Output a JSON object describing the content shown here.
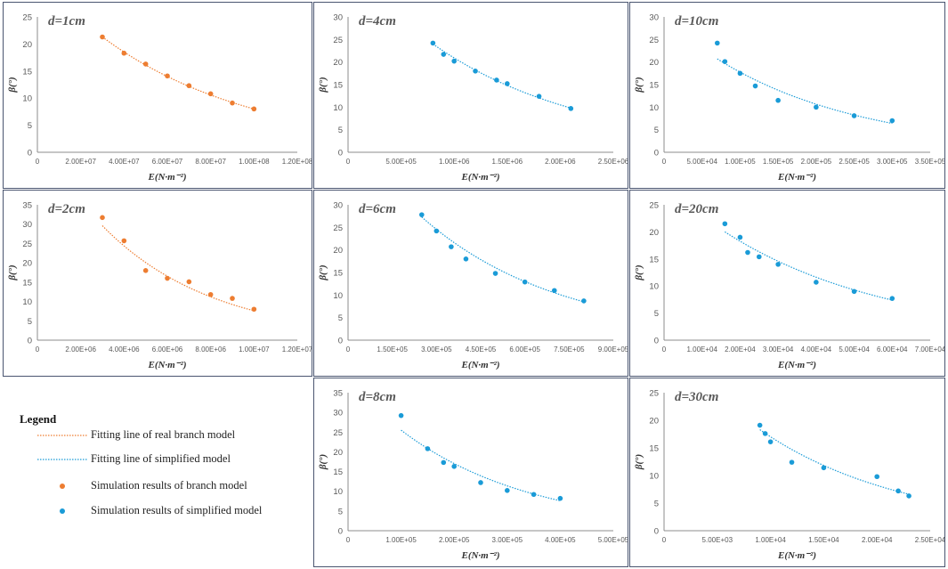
{
  "colors": {
    "branch": "#ED7D31",
    "simplified": "#1A9BD7",
    "axis": "#8c8c8c",
    "label": "#595959",
    "frame": "#4a5570"
  },
  "legend": {
    "title": "Legend",
    "items": [
      {
        "label": "Fitting line of real branch model",
        "kind": "line",
        "color": "#ED7D31"
      },
      {
        "label": "Fitting line of simplified model",
        "kind": "line",
        "color": "#1A9BD7"
      },
      {
        "label": "Simulation results of branch model",
        "kind": "marker",
        "color": "#ED7D31"
      },
      {
        "label": "Simulation results of simplified model",
        "kind": "marker",
        "color": "#1A9BD7"
      }
    ]
  },
  "chart_data": [
    {
      "id": "d1",
      "type": "scatter",
      "title": "d=1cm",
      "model": "branch",
      "xlabel": "E(N·m⁻²)",
      "ylabel": "β(°)",
      "xlim": [
        0,
        120000000
      ],
      "ylim": [
        0,
        25
      ],
      "xticks": [
        0,
        20000000,
        40000000,
        60000000,
        80000000,
        100000000,
        120000000
      ],
      "xtick_labels": [
        "0",
        "2.00E+07",
        "4.00E+07",
        "6.00E+07",
        "8.00E+07",
        "1.00E+08",
        "1.20E+08"
      ],
      "yticks": [
        0,
        5,
        10,
        15,
        20,
        25
      ],
      "x": [
        30000000,
        40000000,
        50000000,
        60000000,
        70000000,
        80000000,
        90000000,
        100000000
      ],
      "y": [
        21.3,
        18.3,
        16.3,
        14.1,
        12.3,
        10.8,
        9.1,
        8.0
      ],
      "fit": {
        "x": [
          30000000,
          100000000
        ],
        "y": [
          21.3,
          8.0
        ]
      }
    },
    {
      "id": "d4",
      "type": "scatter",
      "title": "d=4cm",
      "model": "simplified",
      "xlabel": "E(N·m⁻²)",
      "ylabel": "β(°)",
      "xlim": [
        0,
        2500000
      ],
      "ylim": [
        0,
        30
      ],
      "xticks": [
        0,
        500000,
        1000000,
        1500000,
        2000000,
        2500000
      ],
      "xtick_labels": [
        "0",
        "5.00E+05",
        "1.00E+06",
        "1.50E+06",
        "2.00E+06",
        "2.50E+06"
      ],
      "yticks": [
        0,
        5,
        10,
        15,
        20,
        25,
        30
      ],
      "x": [
        800000,
        900000,
        1000000,
        1200000,
        1400000,
        1500000,
        1800000,
        2100000
      ],
      "y": [
        24.2,
        21.7,
        20.2,
        18.0,
        16.0,
        15.2,
        12.4,
        9.7
      ],
      "fit": {
        "x": [
          800000,
          2100000
        ],
        "y": [
          24.0,
          9.8
        ]
      }
    },
    {
      "id": "d10",
      "type": "scatter",
      "title": "d=10cm",
      "model": "simplified",
      "xlabel": "E(N·m⁻²)",
      "ylabel": "β(°)",
      "xlim": [
        0,
        350000
      ],
      "ylim": [
        0,
        30
      ],
      "xticks": [
        0,
        50000,
        100000,
        150000,
        200000,
        250000,
        300000,
        350000
      ],
      "xtick_labels": [
        "0",
        "5.00E+04",
        "1.00E+05",
        "1.50E+05",
        "2.00E+05",
        "2.50E+05",
        "3.00E+05",
        "3.50E+05"
      ],
      "yticks": [
        0,
        5,
        10,
        15,
        20,
        25,
        30
      ],
      "x": [
        70000,
        80000,
        100000,
        120000,
        150000,
        200000,
        250000,
        300000
      ],
      "y": [
        24.2,
        20.1,
        17.5,
        14.7,
        11.5,
        10.0,
        8.1,
        7.0
      ],
      "fit": {
        "x": [
          70000,
          300000
        ],
        "y": [
          20.7,
          6.4
        ]
      }
    },
    {
      "id": "d2",
      "type": "scatter",
      "title": "d=2cm",
      "model": "branch",
      "xlabel": "E(N·m⁻²)",
      "ylabel": "β(°)",
      "xlim": [
        0,
        12000000
      ],
      "ylim": [
        0,
        35
      ],
      "xticks": [
        0,
        2000000,
        4000000,
        6000000,
        8000000,
        10000000,
        12000000
      ],
      "xtick_labels": [
        "0",
        "2.00E+06",
        "4.00E+06",
        "6.00E+06",
        "8.00E+06",
        "1.00E+07",
        "1.20E+07"
      ],
      "yticks": [
        0,
        5,
        10,
        15,
        20,
        25,
        30,
        35
      ],
      "x": [
        3000000,
        4000000,
        5000000,
        6000000,
        7000000,
        8000000,
        9000000,
        10000000
      ],
      "y": [
        31.7,
        25.7,
        18.0,
        16.0,
        15.1,
        11.8,
        10.8,
        8.0
      ],
      "fit": {
        "x": [
          3000000,
          10000000
        ],
        "y": [
          29.6,
          7.6
        ]
      }
    },
    {
      "id": "d6",
      "type": "scatter",
      "title": "d=6cm",
      "model": "simplified",
      "xlabel": "E(N·m⁻²)",
      "ylabel": "β(°)",
      "xlim": [
        0,
        900000
      ],
      "ylim": [
        0,
        30
      ],
      "xticks": [
        0,
        150000,
        300000,
        450000,
        600000,
        750000,
        900000
      ],
      "xtick_labels": [
        "0",
        "1.50E+05",
        "3.00E+05",
        "4.50E+05",
        "6.00E+05",
        "7.50E+05",
        "9.00E+05"
      ],
      "yticks": [
        0,
        5,
        10,
        15,
        20,
        25,
        30
      ],
      "x": [
        250000,
        300000,
        350000,
        400000,
        500000,
        600000,
        700000,
        800000
      ],
      "y": [
        27.8,
        24.2,
        20.7,
        18.0,
        14.8,
        12.9,
        11.0,
        8.7
      ],
      "fit": {
        "x": [
          250000,
          800000
        ],
        "y": [
          27.3,
          8.5
        ]
      }
    },
    {
      "id": "d20",
      "type": "scatter",
      "title": "d=20cm",
      "model": "simplified",
      "xlabel": "E(N·m⁻²)",
      "ylabel": "β(°)",
      "xlim": [
        0,
        70000
      ],
      "ylim": [
        0,
        25
      ],
      "xticks": [
        0,
        10000,
        20000,
        30000,
        40000,
        50000,
        60000,
        70000
      ],
      "xtick_labels": [
        "0",
        "1.00E+04",
        "2.00E+04",
        "3.00E+04",
        "4.00E+04",
        "5.00E+04",
        "6.00E+04",
        "7.00E+04"
      ],
      "yticks": [
        0,
        5,
        10,
        15,
        20,
        25
      ],
      "x": [
        16000,
        20000,
        22000,
        25000,
        30000,
        40000,
        50000,
        60000
      ],
      "y": [
        21.5,
        19.0,
        16.2,
        15.4,
        14.0,
        10.7,
        9.0,
        7.7
      ],
      "fit": {
        "x": [
          16000,
          60000
        ],
        "y": [
          20.0,
          7.4
        ]
      }
    },
    {
      "id": "d8",
      "type": "scatter",
      "title": "d=8cm",
      "model": "simplified",
      "xlabel": "E(N·m⁻²)",
      "ylabel": "β(°)",
      "xlim": [
        0,
        500000
      ],
      "ylim": [
        0,
        35
      ],
      "xticks": [
        0,
        100000,
        200000,
        300000,
        400000,
        500000
      ],
      "xtick_labels": [
        "0",
        "1.00E+05",
        "2.00E+05",
        "3.00E+05",
        "4.00E+05",
        "5.00E+05"
      ],
      "yticks": [
        0,
        5,
        10,
        15,
        20,
        25,
        30,
        35
      ],
      "x": [
        100000,
        150000,
        180000,
        200000,
        250000,
        300000,
        350000,
        400000
      ],
      "y": [
        29.2,
        20.8,
        17.3,
        16.3,
        12.2,
        10.2,
        9.2,
        8.2
      ],
      "fit": {
        "x": [
          100000,
          400000
        ],
        "y": [
          25.5,
          7.6
        ]
      }
    },
    {
      "id": "d30",
      "type": "scatter",
      "title": "d=30cm",
      "model": "simplified",
      "xlabel": "E(N·m⁻²)",
      "ylabel": "β(°)",
      "xlim": [
        0,
        25000
      ],
      "ylim": [
        0,
        25
      ],
      "xticks": [
        0,
        5000,
        10000,
        15000,
        20000,
        25000
      ],
      "xtick_labels": [
        "0",
        "5.00E+03",
        "1.00E+04",
        "1.50E+04",
        "2.00E+04",
        "2.50E+04"
      ],
      "yticks": [
        0,
        5,
        10,
        15,
        20,
        25
      ],
      "x": [
        9000,
        9500,
        10000,
        12000,
        15000,
        20000,
        22000,
        23000
      ],
      "y": [
        19.1,
        17.6,
        16.1,
        12.4,
        11.4,
        9.8,
        7.2,
        6.3
      ],
      "fit": {
        "x": [
          9000,
          23000
        ],
        "y": [
          18.3,
          6.6
        ]
      }
    }
  ]
}
